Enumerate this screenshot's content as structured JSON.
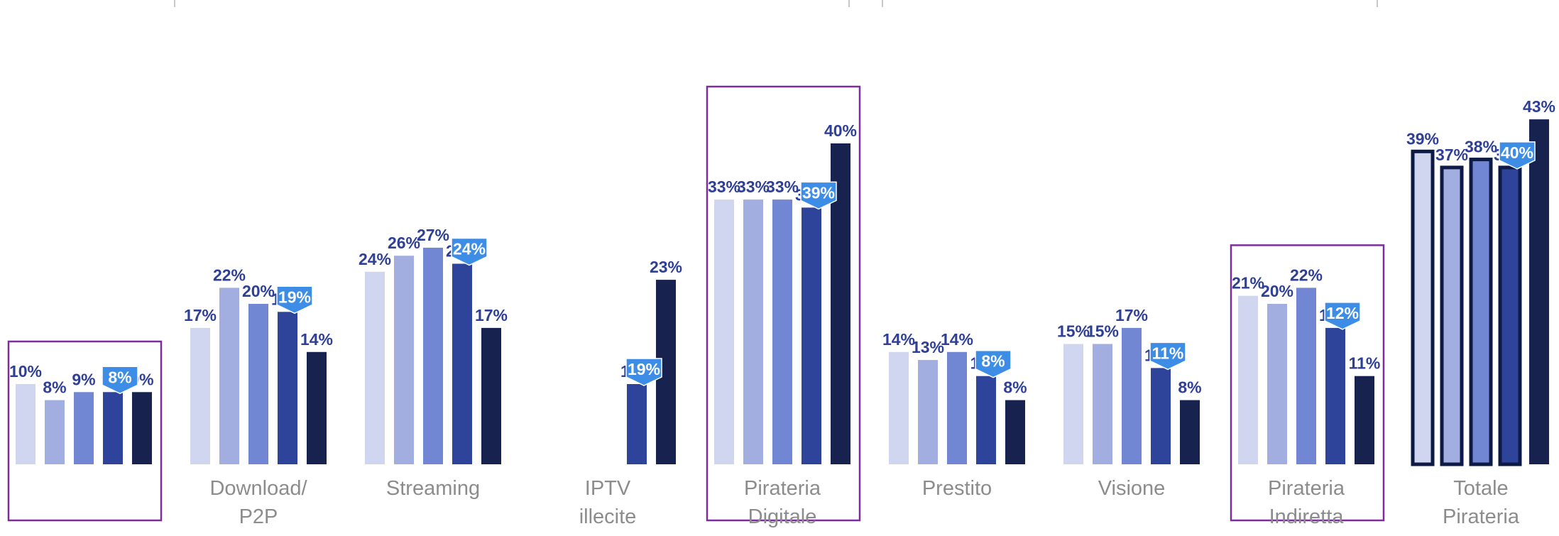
{
  "chart_data": {
    "type": "bar",
    "title": "",
    "xlabel": "",
    "ylabel": "",
    "ylim": [
      0,
      45
    ],
    "value_suffix": "%",
    "series_colors": [
      "#d0d6ef",
      "#a3aee0",
      "#7287d3",
      "#2e439a",
      "#18224f"
    ],
    "label_color": "#2e3f96",
    "callout_color": "#3d8de6",
    "box_color": "#7b2d9e",
    "groups": [
      {
        "label": [
          "",
          ""
        ],
        "boxed": true,
        "values": [
          10,
          8,
          9,
          9,
          9
        ],
        "labels": [
          "10%",
          "8%",
          "9%",
          "9%",
          "9%"
        ],
        "callout": "8%"
      },
      {
        "label": [
          "Download/",
          "P2P"
        ],
        "boxed": false,
        "values": [
          17,
          22,
          20,
          19,
          14
        ],
        "labels": [
          "17%",
          "22%",
          "20%",
          "19%",
          "14%"
        ],
        "callout": "19%"
      },
      {
        "label": [
          "Streaming",
          ""
        ],
        "boxed": false,
        "values": [
          24,
          26,
          27,
          25,
          17
        ],
        "labels": [
          "24%",
          "26%",
          "27%",
          "25%",
          "17%"
        ],
        "callout": "24%"
      },
      {
        "label": [
          "IPTV",
          "illecite"
        ],
        "boxed": false,
        "values": [
          null,
          null,
          null,
          10,
          23
        ],
        "labels": [
          "",
          "",
          "",
          "10%",
          "23%"
        ],
        "callout": "19%"
      },
      {
        "label": [
          "Pirateria",
          "Digitale"
        ],
        "boxed": true,
        "values": [
          33,
          33,
          33,
          32,
          40
        ],
        "labels": [
          "33%",
          "33%",
          "33%",
          "32%",
          "40%"
        ],
        "callout": "39%"
      },
      {
        "label": [
          "Prestito",
          ""
        ],
        "boxed": false,
        "values": [
          14,
          13,
          14,
          11,
          8
        ],
        "labels": [
          "14%",
          "13%",
          "14%",
          "11%",
          "8%"
        ],
        "callout": "8%"
      },
      {
        "label": [
          "Visione",
          ""
        ],
        "boxed": false,
        "values": [
          15,
          15,
          17,
          12,
          8
        ],
        "labels": [
          "15%",
          "15%",
          "17%",
          "12%",
          "8%"
        ],
        "callout": "11%"
      },
      {
        "label": [
          "Pirateria",
          "Indiretta"
        ],
        "boxed": true,
        "values": [
          21,
          20,
          22,
          17,
          11
        ],
        "labels": [
          "21%",
          "20%",
          "22%",
          "17%",
          "11%"
        ],
        "callout": "12%"
      },
      {
        "label": [
          "Totale",
          "Pirateria"
        ],
        "boxed": false,
        "outlined": true,
        "values": [
          39,
          37,
          38,
          37,
          43
        ],
        "labels": [
          "39%",
          "37%",
          "38%",
          "37%",
          "43%"
        ],
        "callout": "40%"
      }
    ]
  }
}
